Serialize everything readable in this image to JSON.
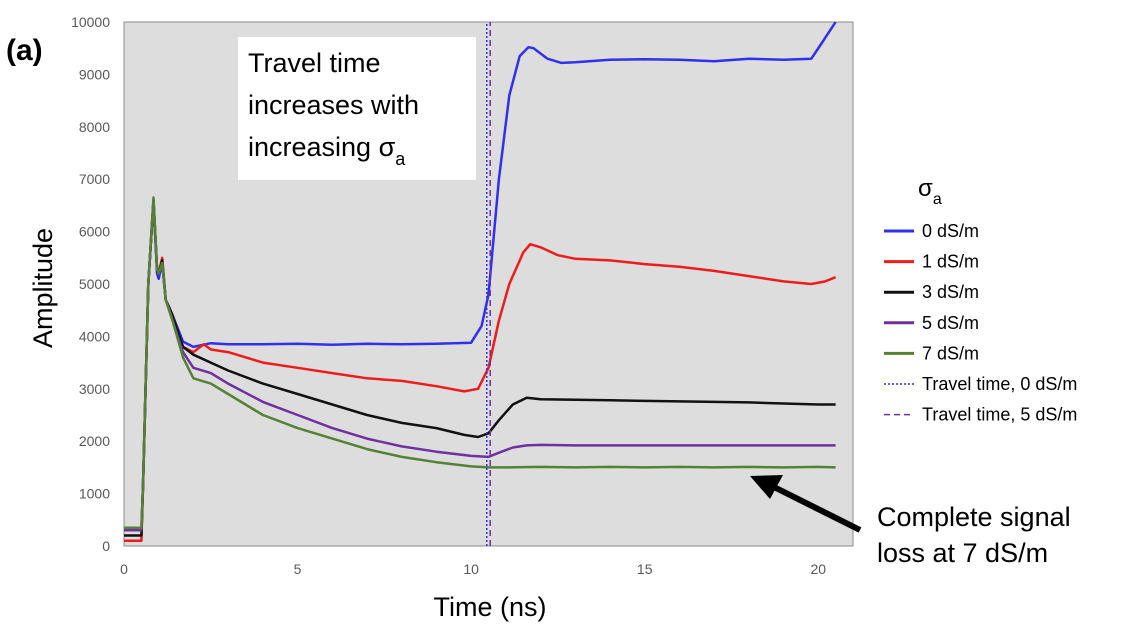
{
  "panel_label": "(a)",
  "annotations": {
    "travel_time_lines": [
      "Travel time",
      "increases with",
      "increasing σ"
    ],
    "travel_time_subscript": "a",
    "signal_loss_lines": [
      "Complete signal",
      "loss at 7 dS/m"
    ]
  },
  "legend": {
    "title": "σ",
    "title_subscript": "a",
    "placement": "right"
  },
  "colors": {
    "plot_background": "#dedddd",
    "blue": "#3030ee",
    "red": "#ee1c1c",
    "black": "#111111",
    "purple": "#7030a0",
    "green": "#548235",
    "tt0": "#3030ee",
    "tt5": "#7030a0"
  },
  "chart_data": {
    "type": "line",
    "title": "",
    "xlabel": "Time (ns)",
    "ylabel": "Amplitude",
    "xlim": [
      0,
      21
    ],
    "ylim": [
      0,
      10000
    ],
    "xticks": [
      0,
      5,
      10,
      15,
      20
    ],
    "yticks": [
      0,
      1000,
      2000,
      3000,
      4000,
      5000,
      6000,
      7000,
      8000,
      9000,
      10000
    ],
    "grid": false,
    "legend": "right",
    "series": [
      {
        "name": "0 dS/m",
        "color": "#3030ee",
        "style": "solid",
        "x": [
          0,
          0.5,
          0.55,
          0.7,
          0.85,
          0.95,
          1.0,
          1.1,
          1.2,
          1.4,
          1.7,
          2.0,
          2.5,
          3,
          4,
          5,
          6,
          7,
          8,
          9,
          10,
          10.3,
          10.5,
          10.8,
          11.1,
          11.4,
          11.65,
          11.8,
          12.2,
          12.6,
          13,
          14,
          15,
          16,
          17,
          18,
          19,
          19.8,
          20.1,
          20.5
        ],
        "y": [
          300,
          300,
          1200,
          5000,
          6600,
          5200,
          5100,
          5400,
          4700,
          4400,
          3900,
          3800,
          3870,
          3850,
          3850,
          3860,
          3840,
          3860,
          3850,
          3860,
          3880,
          4200,
          4800,
          7000,
          8600,
          9350,
          9520,
          9500,
          9300,
          9220,
          9230,
          9280,
          9290,
          9280,
          9250,
          9300,
          9280,
          9300,
          9600,
          10000
        ]
      },
      {
        "name": "1 dS/m",
        "color": "#ee1c1c",
        "style": "solid",
        "x": [
          0,
          0.5,
          0.55,
          0.7,
          0.85,
          0.95,
          1.0,
          1.1,
          1.2,
          1.4,
          1.7,
          2.0,
          2.3,
          2.5,
          3,
          4,
          5,
          6,
          7,
          8,
          9,
          9.8,
          10.2,
          10.5,
          10.8,
          11.1,
          11.5,
          11.7,
          12,
          12.5,
          13,
          14,
          15,
          16,
          17,
          18,
          19,
          19.8,
          20.2,
          20.5
        ],
        "y": [
          100,
          100,
          1200,
          5000,
          6600,
          5300,
          5200,
          5500,
          4700,
          4400,
          3800,
          3700,
          3850,
          3750,
          3700,
          3500,
          3400,
          3300,
          3200,
          3150,
          3050,
          2950,
          3000,
          3400,
          4300,
          5000,
          5600,
          5760,
          5700,
          5550,
          5480,
          5450,
          5380,
          5330,
          5250,
          5150,
          5050,
          5000,
          5050,
          5130
        ]
      },
      {
        "name": "3 dS/m",
        "color": "#111111",
        "style": "solid",
        "x": [
          0,
          0.5,
          0.55,
          0.7,
          0.85,
          0.95,
          1.0,
          1.1,
          1.2,
          1.4,
          1.7,
          2.0,
          2.5,
          3,
          4,
          5,
          6,
          7,
          8,
          9,
          9.8,
          10.2,
          10.5,
          10.8,
          11.2,
          11.6,
          12,
          13,
          14,
          15,
          16,
          17,
          18,
          19,
          20,
          20.5
        ],
        "y": [
          200,
          200,
          1200,
          5000,
          6600,
          5300,
          5200,
          5450,
          4700,
          4400,
          3800,
          3650,
          3500,
          3350,
          3100,
          2900,
          2700,
          2500,
          2350,
          2250,
          2120,
          2080,
          2150,
          2400,
          2700,
          2830,
          2800,
          2790,
          2780,
          2770,
          2760,
          2750,
          2740,
          2720,
          2700,
          2700
        ]
      },
      {
        "name": "5 dS/m",
        "color": "#7030a0",
        "style": "solid",
        "x": [
          0,
          0.5,
          0.55,
          0.7,
          0.85,
          0.95,
          1.0,
          1.1,
          1.2,
          1.4,
          1.7,
          2.0,
          2.5,
          3,
          4,
          5,
          6,
          7,
          8,
          9,
          10,
          10.5,
          10.8,
          11.2,
          11.6,
          12,
          13,
          14,
          15,
          16,
          17,
          18,
          19,
          20,
          20.5
        ],
        "y": [
          300,
          300,
          1200,
          5000,
          6600,
          5300,
          5200,
          5400,
          4700,
          4300,
          3700,
          3400,
          3300,
          3100,
          2750,
          2500,
          2250,
          2050,
          1900,
          1800,
          1720,
          1700,
          1780,
          1880,
          1920,
          1930,
          1920,
          1920,
          1920,
          1920,
          1920,
          1920,
          1920,
          1920,
          1920
        ]
      },
      {
        "name": "7 dS/m",
        "color": "#548235",
        "style": "solid",
        "x": [
          0,
          0.5,
          0.55,
          0.7,
          0.85,
          0.95,
          1.0,
          1.1,
          1.2,
          1.4,
          1.7,
          2.0,
          2.5,
          3,
          4,
          5,
          6,
          7,
          8,
          9,
          10,
          10.5,
          11,
          12,
          13,
          14,
          15,
          16,
          17,
          18,
          19,
          20,
          20.5
        ],
        "y": [
          350,
          350,
          1200,
          5000,
          6650,
          5300,
          5200,
          5400,
          4700,
          4300,
          3600,
          3200,
          3100,
          2900,
          2500,
          2250,
          2050,
          1850,
          1700,
          1600,
          1520,
          1500,
          1500,
          1510,
          1500,
          1510,
          1500,
          1510,
          1500,
          1510,
          1500,
          1510,
          1500
        ]
      },
      {
        "name": "Travel time, 0 dS/m",
        "color": "#3030ee",
        "style": "dotted",
        "x": [
          10.45,
          10.45
        ],
        "y": [
          0,
          10000
        ]
      },
      {
        "name": "Travel time, 5 dS/m",
        "color": "#7030a0",
        "style": "dashed",
        "x": [
          10.55,
          10.55
        ],
        "y": [
          0,
          10000
        ]
      }
    ]
  }
}
